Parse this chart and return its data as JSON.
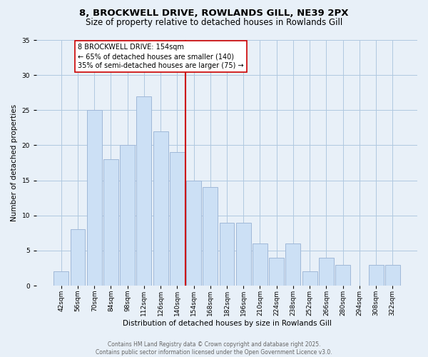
{
  "title1": "8, BROCKWELL DRIVE, ROWLANDS GILL, NE39 2PX",
  "title2": "Size of property relative to detached houses in Rowlands Gill",
  "xlabel": "Distribution of detached houses by size in Rowlands Gill",
  "ylabel": "Number of detached properties",
  "categories": [
    "42sqm",
    "56sqm",
    "70sqm",
    "84sqm",
    "98sqm",
    "112sqm",
    "126sqm",
    "140sqm",
    "154sqm",
    "168sqm",
    "182sqm",
    "196sqm",
    "210sqm",
    "224sqm",
    "238sqm",
    "252sqm",
    "266sqm",
    "280sqm",
    "294sqm",
    "308sqm",
    "322sqm"
  ],
  "values": [
    2,
    8,
    25,
    18,
    20,
    27,
    22,
    19,
    15,
    14,
    9,
    9,
    6,
    4,
    6,
    2,
    4,
    3,
    0,
    3,
    3
  ],
  "bar_color": "#cce0f5",
  "bar_edge_color": "#a0b8d8",
  "vline_color": "#cc0000",
  "annotation_text": "8 BROCKWELL DRIVE: 154sqm\n← 65% of detached houses are smaller (140)\n35% of semi-detached houses are larger (75) →",
  "annotation_box_color": "#ffffff",
  "annotation_box_edge": "#cc0000",
  "ylim": [
    0,
    35
  ],
  "yticks": [
    0,
    5,
    10,
    15,
    20,
    25,
    30,
    35
  ],
  "grid_color": "#b0c8e0",
  "background_color": "#e8f0f8",
  "footer_text": "Contains HM Land Registry data © Crown copyright and database right 2025.\nContains public sector information licensed under the Open Government Licence v3.0.",
  "title_fontsize": 9.5,
  "subtitle_fontsize": 8.5,
  "axis_label_fontsize": 7.5,
  "tick_fontsize": 6.5,
  "annotation_fontsize": 7,
  "footer_fontsize": 5.5
}
